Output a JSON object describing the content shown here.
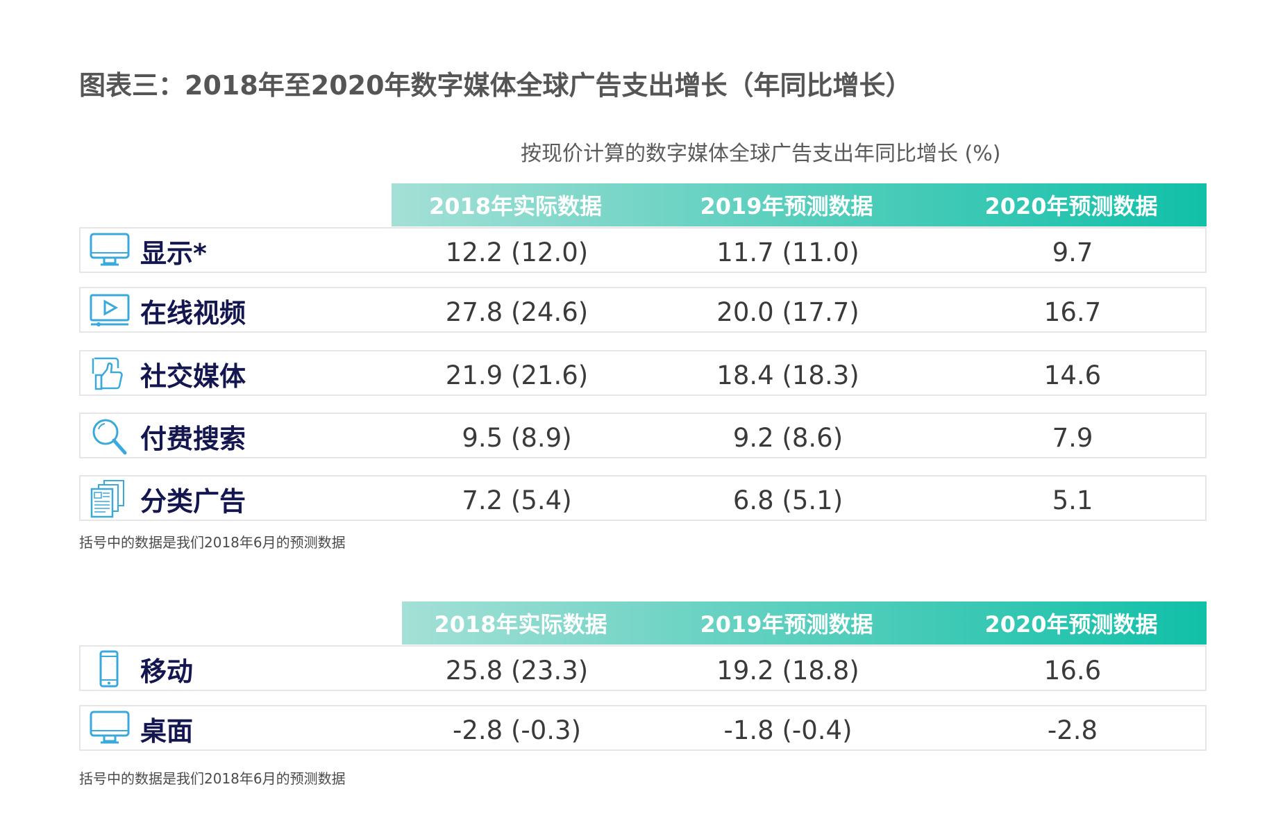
{
  "title": "图表三：2018年至2020年数字媒体全球广告支出增长（年同比增长）",
  "subtitle": "按现价计算的数字媒体全球广告支出年同比增长 (%)",
  "tables": [
    {
      "columns": [
        "2018年实际数据",
        "2019年预测数据",
        "2020年预测数据"
      ],
      "rows": [
        {
          "label": "显示*",
          "icon": "monitor-icon",
          "values": [
            "12.2 (12.0)",
            "11.7 (11.0)",
            "9.7"
          ]
        },
        {
          "label": "在线视频",
          "icon": "video-icon",
          "values": [
            "27.8 (24.6)",
            "20.0 (17.7)",
            "16.7"
          ]
        },
        {
          "label": "社交媒体",
          "icon": "thumbs-up-icon",
          "values": [
            "21.9 (21.6)",
            "18.4 (18.3)",
            "14.6"
          ]
        },
        {
          "label": "付费搜索",
          "icon": "search-icon",
          "values": [
            "9.5 (8.9)",
            "9.2 (8.6)",
            "7.9"
          ]
        },
        {
          "label": "分类广告",
          "icon": "newspaper-icon",
          "values": [
            "7.2 (5.4)",
            "6.8 (5.1)",
            "5.1"
          ]
        }
      ],
      "note": "括号中的数据是我们2018年6月的预测数据"
    },
    {
      "columns": [
        "2018年实际数据",
        "2019年预测数据",
        "2020年预测数据"
      ],
      "rows": [
        {
          "label": "移动",
          "icon": "phone-icon",
          "values": [
            "25.8 (23.3)",
            "19.2 (18.8)",
            "16.6"
          ]
        },
        {
          "label": "桌面",
          "icon": "monitor-icon",
          "values": [
            "-2.8 (-0.3)",
            "-1.8 (-0.4)",
            "-2.8"
          ]
        }
      ],
      "note": "括号中的数据是我们2018年6月的预测数据"
    }
  ],
  "colors": {
    "header_start": "#a4e0d6",
    "header_end": "#11c0a8",
    "label": "#14164f",
    "icon": "#39a9dc"
  }
}
